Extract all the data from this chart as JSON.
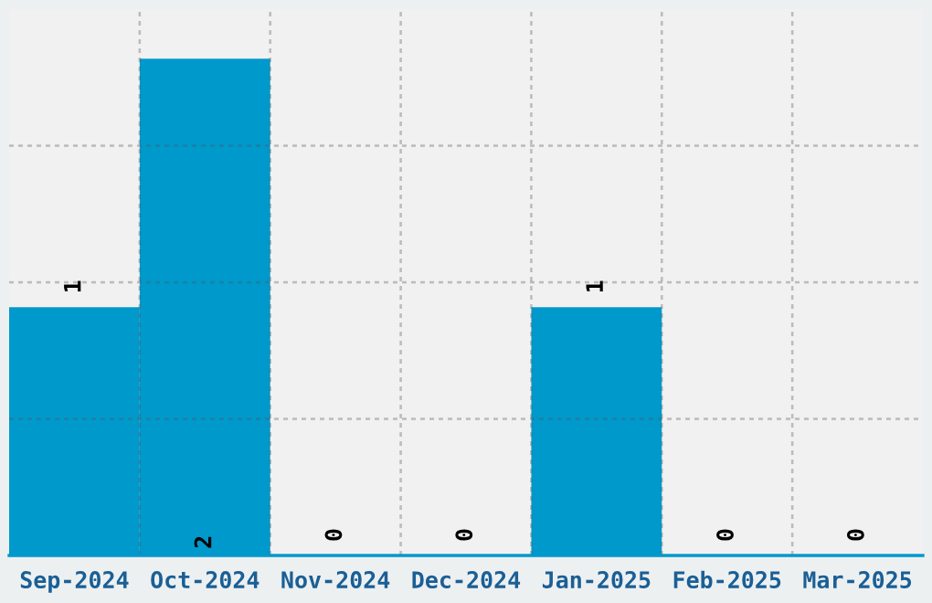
{
  "chart_data": {
    "type": "bar",
    "categories": [
      "Sep-2024",
      "Oct-2024",
      "Nov-2024",
      "Dec-2024",
      "Jan-2025",
      "Feb-2025",
      "Mar-2025"
    ],
    "values": [
      1,
      2,
      0,
      0,
      1,
      0,
      0
    ],
    "color": "#0099cc",
    "ylim": [
      0,
      2.2
    ],
    "yticks": [
      {
        "value": 0.55,
        "label": null
      },
      {
        "value": 1.1,
        "label": null
      },
      {
        "value": 1.65,
        "label": null
      }
    ],
    "tick_labels": "x",
    "grid": true,
    "data_labels": true
  }
}
